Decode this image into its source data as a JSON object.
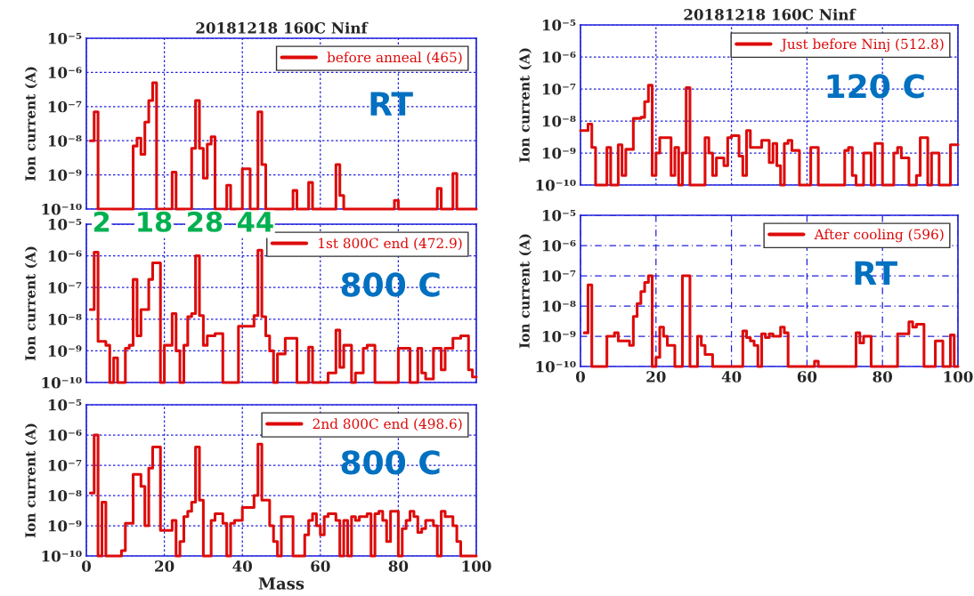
{
  "chart_data": [
    {
      "type": "step",
      "title": "20181218 160C Ninf",
      "ylabel": "Ion current (A)",
      "log": "y",
      "grid": true,
      "legend": "top right",
      "tick_labels": "y",
      "xlim": [
        0,
        100
      ],
      "xticks": [
        0,
        20,
        40,
        60,
        80,
        100
      ],
      "ylim": [
        1e-10,
        1e-05
      ],
      "yticks": [
        {
          "value": 1e-10,
          "label": "10⁻¹⁰"
        },
        {
          "value": 1e-09,
          "label": "10⁻⁹"
        },
        {
          "value": 1e-08,
          "label": "10⁻⁸"
        },
        {
          "value": 1e-07,
          "label": "10⁻⁷"
        },
        {
          "value": 1e-06,
          "label": "10⁻⁶"
        },
        {
          "value": 1e-05,
          "label": "10⁻⁵"
        }
      ],
      "annotations": [
        "RT"
      ],
      "series": [
        {
          "name": "before anneal (465)",
          "color": "#dd0b0b",
          "x": [
            1,
            2,
            3,
            12,
            13,
            14,
            15,
            16,
            17,
            18,
            21,
            22,
            23,
            27,
            28,
            29,
            30,
            31,
            32,
            33,
            36,
            37,
            40,
            41,
            42,
            44,
            45,
            46,
            53,
            54,
            57,
            58,
            64,
            65,
            66,
            79,
            80,
            90,
            91,
            94,
            95,
            100
          ],
          "values": [
            1e-08,
            7e-08,
            1e-10,
            7e-09,
            1.2e-08,
            4e-09,
            3.5e-08,
            1.5e-07,
            5e-07,
            1e-10,
            1e-10,
            1.2e-09,
            1e-10,
            6e-09,
            1.5e-07,
            6e-09,
            8e-10,
            8e-09,
            1.3e-08,
            1e-10,
            5e-10,
            1e-10,
            1.5e-09,
            1.5e-09,
            1e-10,
            7e-08,
            2e-09,
            1e-10,
            3.5e-10,
            1e-10,
            6e-10,
            1e-10,
            2e-09,
            2.5e-10,
            1e-10,
            1.8e-10,
            1e-10,
            4e-10,
            1e-10,
            1.1e-09,
            1e-10,
            1e-10
          ]
        }
      ]
    },
    {
      "type": "step",
      "ylabel": "Ion current (A)",
      "log": "y",
      "grid": true,
      "legend": "top right",
      "tick_labels": "y",
      "xlim": [
        0,
        100
      ],
      "xticks": [
        0,
        20,
        40,
        60,
        80,
        100
      ],
      "ylim": [
        1e-10,
        1e-05
      ],
      "yticks": [
        {
          "value": 1e-10,
          "label": "10⁻¹⁰"
        },
        {
          "value": 1e-09,
          "label": "10⁻⁹"
        },
        {
          "value": 1e-08,
          "label": "10⁻⁸"
        },
        {
          "value": 1e-07,
          "label": "10⁻⁷"
        },
        {
          "value": 1e-06,
          "label": "10⁻⁶"
        },
        {
          "value": 1e-05,
          "label": "10⁻⁵"
        }
      ],
      "annotations": [
        "800 C",
        "2",
        "18",
        "28",
        "44"
      ],
      "series": [
        {
          "name": "1st 800C end (472.9)",
          "color": "#dd0b0b",
          "x": [
            1,
            2,
            3,
            5,
            6,
            7,
            8,
            10,
            11,
            12,
            13,
            14,
            16,
            17,
            19,
            20,
            22,
            23,
            24,
            25,
            26,
            27,
            28,
            29,
            30,
            31,
            33,
            35,
            39,
            43,
            44,
            45,
            46,
            47,
            48,
            49,
            51,
            54,
            57,
            58,
            62,
            64,
            65,
            66,
            68,
            69,
            71,
            72,
            74,
            80,
            83,
            85,
            86,
            87,
            89,
            91,
            92,
            94,
            96,
            98,
            99,
            100
          ],
          "values": [
            2e-08,
            1.3e-06,
            2e-09,
            1.5e-09,
            1e-10,
            6e-10,
            1e-10,
            1.2e-09,
            1.5e-09,
            1.8e-07,
            3e-09,
            2e-08,
            1.8e-07,
            6e-07,
            1e-10,
            1.5e-09,
            1.5e-08,
            1e-09,
            1e-10,
            1.5e-09,
            1.2e-08,
            1.5e-08,
            1e-06,
            1.3e-08,
            1.5e-09,
            3e-09,
            3.5e-09,
            1e-10,
            6e-09,
            1.3e-08,
            1.5e-06,
            1.2e-08,
            3e-09,
            1e-09,
            1e-10,
            8e-10,
            2.5e-09,
            1e-10,
            1.3e-09,
            1e-10,
            2e-10,
            4.5e-09,
            3e-10,
            1.5e-09,
            1e-10,
            2e-10,
            1.2e-09,
            1.5e-09,
            1e-10,
            1.2e-09,
            1e-10,
            1.2e-09,
            2e-10,
            1.3e-10,
            1.2e-09,
            2.5e-10,
            1.2e-09,
            2.5e-09,
            3e-09,
            2.5e-10,
            1.5e-10,
            1.5e-10
          ]
        }
      ]
    },
    {
      "type": "step",
      "xlabel": "Mass",
      "ylabel": "Ion current (A)",
      "log": "y",
      "grid": true,
      "legend": "top right",
      "xlim": [
        0,
        100
      ],
      "xticks": [
        0,
        20,
        40,
        60,
        80,
        100
      ],
      "ylim": [
        1e-10,
        1e-05
      ],
      "yticks": [
        {
          "value": 1e-10,
          "label": "10⁻¹⁰"
        },
        {
          "value": 1e-09,
          "label": "10⁻⁹"
        },
        {
          "value": 1e-08,
          "label": "10⁻⁸"
        },
        {
          "value": 1e-07,
          "label": "10⁻⁷"
        },
        {
          "value": 1e-06,
          "label": "10⁻⁶"
        },
        {
          "value": 1e-05,
          "label": "10⁻⁵"
        }
      ],
      "annotations": [
        "800 C"
      ],
      "series": [
        {
          "name": "2nd 800C end (498.6)",
          "color": "#dd0b0b",
          "x": [
            1,
            2,
            3,
            4,
            5,
            9,
            10,
            12,
            14,
            15,
            16,
            17,
            19,
            22,
            23,
            24,
            25,
            26,
            27,
            28,
            29,
            30,
            32,
            33,
            35,
            36,
            37,
            38,
            40,
            43,
            44,
            45,
            47,
            48,
            49,
            50,
            53,
            56,
            57,
            58,
            59,
            60,
            61,
            62,
            64,
            65,
            66,
            67,
            68,
            69,
            70,
            72,
            73,
            74,
            75,
            76,
            77,
            78,
            80,
            81,
            82,
            83,
            84,
            85,
            86,
            87,
            89,
            90,
            91,
            92,
            94,
            95,
            96,
            100
          ],
          "values": [
            1.2e-08,
            1e-06,
            1e-10,
            6e-09,
            1e-10,
            1.5e-10,
            1.2e-09,
            5e-08,
            2e-08,
            1e-09,
            8e-08,
            4e-07,
            7e-10,
            1.5e-09,
            1e-10,
            3e-10,
            2e-09,
            3e-09,
            6e-09,
            4e-07,
            7e-09,
            1e-10,
            1.5e-09,
            2.5e-09,
            1.2e-09,
            1e-10,
            1.2e-09,
            1.5e-09,
            4e-09,
            1e-08,
            5e-07,
            7e-09,
            1e-09,
            3e-10,
            1e-10,
            2e-09,
            1e-10,
            5e-10,
            1.5e-09,
            2.5e-09,
            1e-09,
            5e-10,
            2e-09,
            2.5e-09,
            1.5e-09,
            1e-10,
            1.5e-09,
            1e-10,
            2e-09,
            1.5e-09,
            2e-09,
            2.5e-09,
            1e-10,
            2.5e-09,
            3e-09,
            1.5e-09,
            3e-10,
            3e-09,
            1e-10,
            8e-10,
            1.5e-09,
            3e-09,
            2e-09,
            6e-10,
            8e-10,
            1.5e-09,
            1e-09,
            1e-10,
            3e-09,
            2e-09,
            1e-09,
            3e-10,
            1e-10,
            1e-10
          ]
        }
      ]
    },
    {
      "type": "step",
      "title": "20181218 160C Ninf",
      "ylabel": "Ion current (A)",
      "log": "y",
      "grid": true,
      "legend": "top right",
      "tick_labels": "y",
      "xlim": [
        0,
        100
      ],
      "xticks": [
        0,
        20,
        40,
        60,
        80,
        100
      ],
      "ylim": [
        1e-10,
        1e-05
      ],
      "yticks": [
        {
          "value": 1e-10,
          "label": "10⁻¹⁰"
        },
        {
          "value": 1e-09,
          "label": "10⁻⁹"
        },
        {
          "value": 1e-08,
          "label": "10⁻⁸"
        },
        {
          "value": 1e-07,
          "label": "10⁻⁷"
        },
        {
          "value": 1e-06,
          "label": "10⁻⁶"
        },
        {
          "value": 1e-05,
          "label": "10⁻⁵"
        }
      ],
      "annotations": [
        "120 C"
      ],
      "series": [
        {
          "name": "Just before Ninj (512.8)",
          "color": "#dd0b0b",
          "x": [
            0,
            2,
            3,
            4,
            7,
            8,
            10,
            11,
            12,
            14,
            16,
            17,
            18,
            19,
            20,
            21,
            24,
            25,
            26,
            27,
            28,
            29,
            33,
            34,
            35,
            36,
            38,
            39,
            40,
            42,
            43,
            44,
            45,
            48,
            50,
            51,
            52,
            53,
            54,
            55,
            56,
            58,
            61,
            63,
            70,
            71,
            72,
            73,
            75,
            77,
            78,
            80,
            83,
            84,
            85,
            87,
            89,
            90,
            92,
            93,
            95,
            98,
            100
          ],
          "values": [
            5e-09,
            8e-09,
            1.5e-09,
            1e-10,
            1.5e-09,
            1e-10,
            1.8e-09,
            2e-10,
            1.3e-09,
            1.2e-08,
            1.3e-08,
            4e-08,
            1.3e-07,
            2e-10,
            1e-09,
            3e-09,
            2e-10,
            1.5e-09,
            1e-10,
            1e-09,
            1.1e-07,
            1e-10,
            3e-09,
            1e-09,
            2e-10,
            7e-10,
            4e-10,
            3e-09,
            3.5e-09,
            8e-10,
            2e-10,
            5e-09,
            1.5e-09,
            2.5e-09,
            5e-10,
            2e-09,
            4e-10,
            1e-10,
            2e-09,
            2.5e-09,
            1.2e-09,
            1e-10,
            1.5e-09,
            1e-10,
            1.2e-09,
            1.5e-09,
            2e-10,
            1e-10,
            1e-09,
            1e-10,
            2e-09,
            1e-10,
            1e-09,
            1.5e-09,
            7e-10,
            1e-10,
            2e-10,
            3e-09,
            1e-10,
            1e-09,
            1e-10,
            1.8e-09,
            1.8e-09
          ]
        }
      ]
    },
    {
      "type": "step",
      "ylabel": "Ion current (A)",
      "log": "y",
      "grid": true,
      "legend": "top right",
      "xlim": [
        0,
        100
      ],
      "xticks": [
        0,
        20,
        40,
        60,
        80,
        100
      ],
      "ylim": [
        1e-10,
        1e-05
      ],
      "yticks": [
        {
          "value": 1e-10,
          "label": "10⁻¹⁰"
        },
        {
          "value": 1e-09,
          "label": "10⁻⁹"
        },
        {
          "value": 1e-08,
          "label": "10⁻⁸"
        },
        {
          "value": 1e-07,
          "label": "10⁻⁷"
        },
        {
          "value": 1e-06,
          "label": "10⁻⁶"
        },
        {
          "value": 1e-05,
          "label": "10⁻⁵"
        }
      ],
      "annotations": [
        "RT"
      ],
      "series": [
        {
          "name": "After cooling (596)",
          "color": "#dd0b0b",
          "x": [
            1,
            2,
            3,
            7,
            9,
            10,
            13,
            14,
            15,
            16,
            17,
            18,
            19,
            20,
            21,
            22,
            23,
            25,
            27,
            29,
            31,
            32,
            33,
            35,
            43,
            44,
            45,
            46,
            47,
            48,
            49,
            50,
            51,
            53,
            54,
            55,
            62,
            63,
            73,
            74,
            75,
            77,
            84,
            87,
            88,
            89,
            91,
            94,
            96,
            98,
            99,
            100
          ],
          "values": [
            1.3e-09,
            5e-08,
            1e-10,
            1e-09,
            1.3e-09,
            7e-10,
            5e-10,
            4.5e-09,
            1.2e-08,
            3e-08,
            6e-08,
            1e-07,
            1e-10,
            2e-10,
            2e-09,
            1e-09,
            5e-10,
            1e-10,
            1e-07,
            1e-10,
            1e-09,
            5e-10,
            2.5e-10,
            1e-10,
            1.5e-09,
            9e-10,
            7e-10,
            5e-10,
            1e-10,
            1.2e-09,
            9e-10,
            1.2e-09,
            1e-09,
            2e-09,
            1.3e-09,
            1e-10,
            1.5e-10,
            1e-10,
            1.3e-09,
            6e-10,
            1e-09,
            1e-10,
            1.2e-09,
            3e-09,
            2e-09,
            2.5e-09,
            1e-10,
            7e-10,
            1e-10,
            1.1e-09,
            1e-10,
            1e-10
          ]
        }
      ]
    }
  ]
}
